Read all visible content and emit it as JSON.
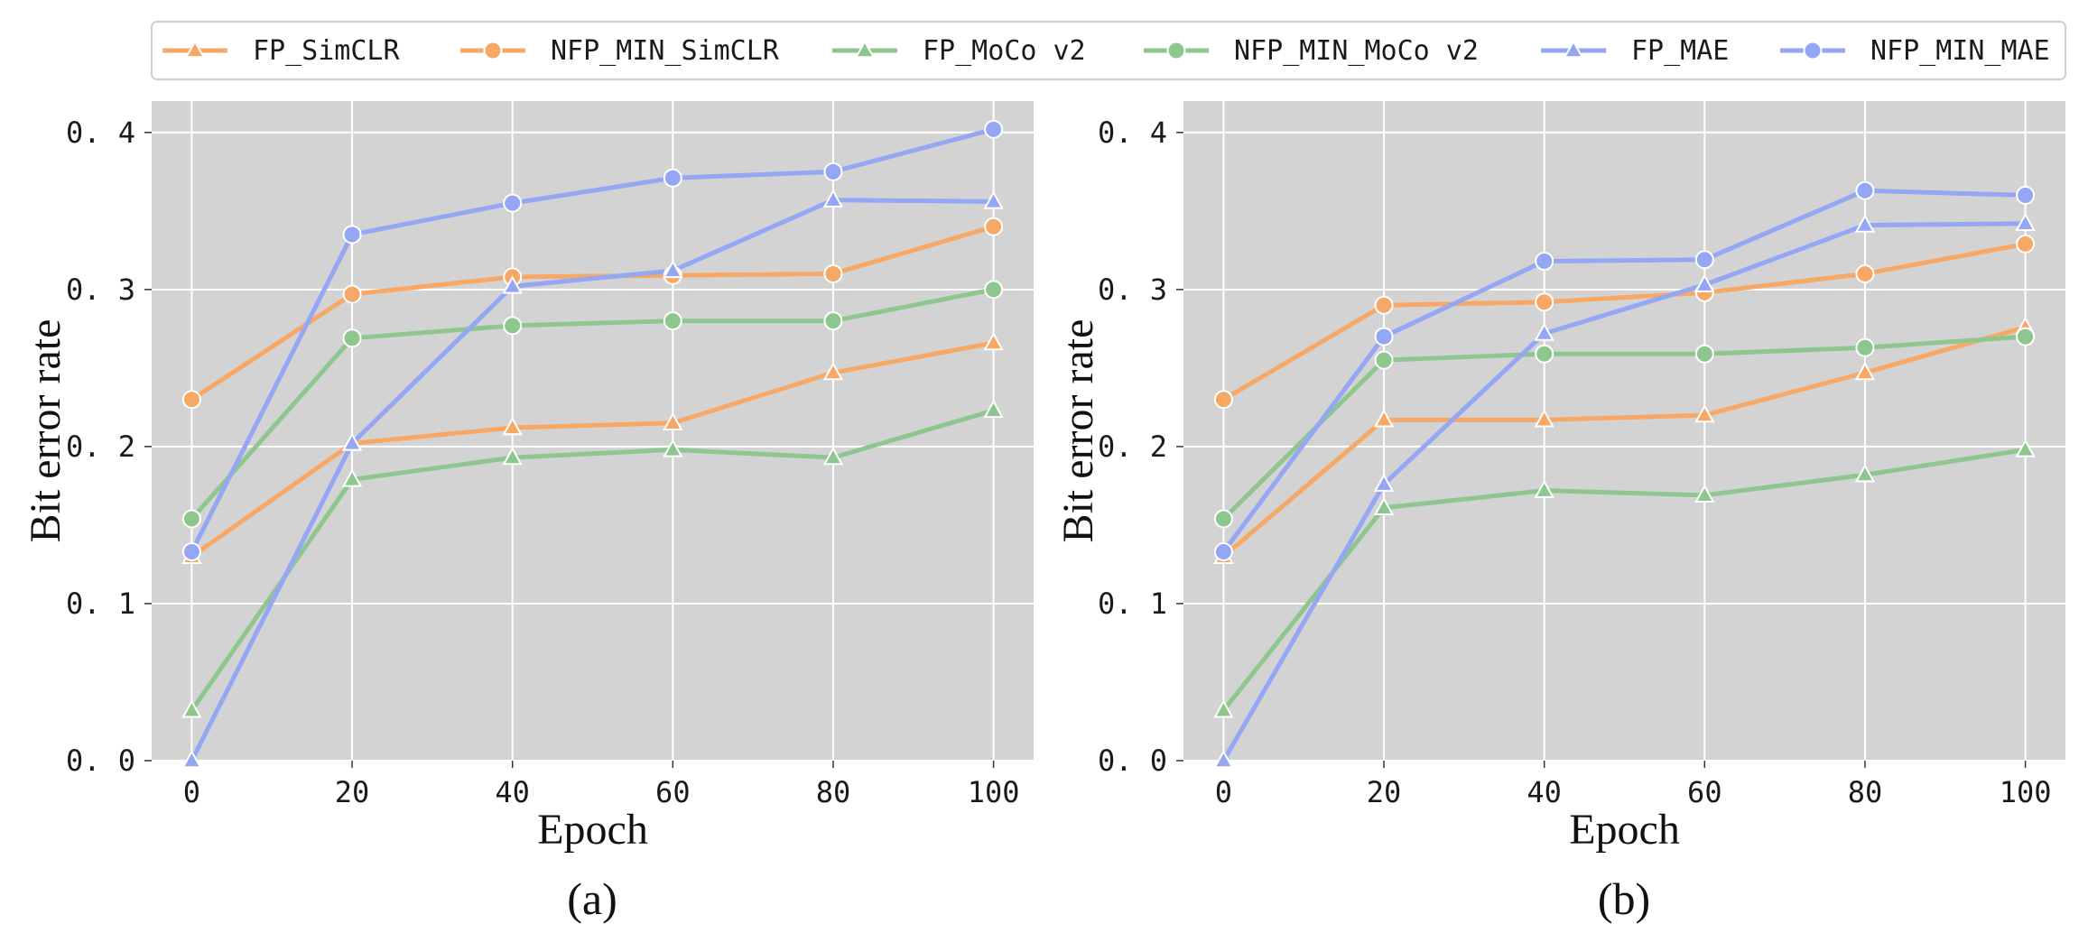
{
  "colors": {
    "SimCLR": "#f7a866",
    "MoCo v2": "#8ec78e",
    "MAE": "#94a6f4",
    "plot_bg": "#d3d3d3",
    "grid": "#ffffff"
  },
  "legend": [
    {
      "label": "FP_SimCLR",
      "color": "#f7a866",
      "marker": "triangle"
    },
    {
      "label": "NFP_MIN_SimCLR",
      "color": "#f7a866",
      "marker": "circle"
    },
    {
      "label": "FP_MoCo v2",
      "color": "#8ec78e",
      "marker": "triangle"
    },
    {
      "label": "NFP_MIN_MoCo v2",
      "color": "#8ec78e",
      "marker": "circle"
    },
    {
      "label": "FP_MAE",
      "color": "#94a6f4",
      "marker": "triangle"
    },
    {
      "label": "NFP_MIN_MAE",
      "color": "#94a6f4",
      "marker": "circle"
    }
  ],
  "chart_data": [
    {
      "type": "line",
      "panel_label": "(a)",
      "xlabel": "Epoch",
      "ylabel": "Bit error rate",
      "x": [
        0,
        20,
        40,
        60,
        80,
        100
      ],
      "xticks": [
        "0",
        "20",
        "40",
        "60",
        "80",
        "100"
      ],
      "yticks": [
        "0. 0",
        "0. 1",
        "0. 2",
        "0. 3",
        "0. 4"
      ],
      "xlim": [
        -5,
        105
      ],
      "ylim": [
        0,
        0.42
      ],
      "grid": true,
      "series": [
        {
          "name": "FP_SimCLR",
          "color": "#f7a866",
          "marker": "triangle",
          "values": [
            0.13,
            0.202,
            0.212,
            0.215,
            0.247,
            0.266
          ]
        },
        {
          "name": "NFP_MIN_SimCLR",
          "color": "#f7a866",
          "marker": "circle",
          "values": [
            0.23,
            0.297,
            0.308,
            0.309,
            0.31,
            0.34
          ]
        },
        {
          "name": "FP_MoCo v2",
          "color": "#8ec78e",
          "marker": "triangle",
          "values": [
            0.032,
            0.179,
            0.193,
            0.198,
            0.193,
            0.223
          ]
        },
        {
          "name": "NFP_MIN_MoCo v2",
          "color": "#8ec78e",
          "marker": "circle",
          "values": [
            0.154,
            0.269,
            0.277,
            0.28,
            0.28,
            0.3
          ]
        },
        {
          "name": "FP_MAE",
          "color": "#94a6f4",
          "marker": "triangle",
          "values": [
            0.0,
            0.202,
            0.302,
            0.312,
            0.357,
            0.356
          ]
        },
        {
          "name": "NFP_MIN_MAE",
          "color": "#94a6f4",
          "marker": "circle",
          "values": [
            0.133,
            0.335,
            0.355,
            0.371,
            0.375,
            0.402
          ]
        }
      ]
    },
    {
      "type": "line",
      "panel_label": "(b)",
      "xlabel": "Epoch",
      "ylabel": "Bit error rate",
      "x": [
        0,
        20,
        40,
        60,
        80,
        100
      ],
      "xticks": [
        "0",
        "20",
        "40",
        "60",
        "80",
        "100"
      ],
      "yticks": [
        "0. 0",
        "0. 1",
        "0. 2",
        "0. 3",
        "0. 4"
      ],
      "xlim": [
        -5,
        105
      ],
      "ylim": [
        0,
        0.42
      ],
      "grid": true,
      "series": [
        {
          "name": "FP_SimCLR",
          "color": "#f7a866",
          "marker": "triangle",
          "values": [
            0.13,
            0.217,
            0.217,
            0.22,
            0.247,
            0.276
          ]
        },
        {
          "name": "NFP_MIN_SimCLR",
          "color": "#f7a866",
          "marker": "circle",
          "values": [
            0.23,
            0.29,
            0.292,
            0.298,
            0.31,
            0.329
          ]
        },
        {
          "name": "FP_MoCo v2",
          "color": "#8ec78e",
          "marker": "triangle",
          "values": [
            0.032,
            0.161,
            0.172,
            0.169,
            0.182,
            0.198
          ]
        },
        {
          "name": "NFP_MIN_MoCo v2",
          "color": "#8ec78e",
          "marker": "circle",
          "values": [
            0.154,
            0.255,
            0.259,
            0.259,
            0.263,
            0.27
          ]
        },
        {
          "name": "FP_MAE",
          "color": "#94a6f4",
          "marker": "triangle",
          "values": [
            0.0,
            0.176,
            0.272,
            0.303,
            0.341,
            0.342
          ]
        },
        {
          "name": "NFP_MIN_MAE",
          "color": "#94a6f4",
          "marker": "circle",
          "values": [
            0.133,
            0.27,
            0.318,
            0.319,
            0.363,
            0.36
          ]
        }
      ]
    }
  ]
}
